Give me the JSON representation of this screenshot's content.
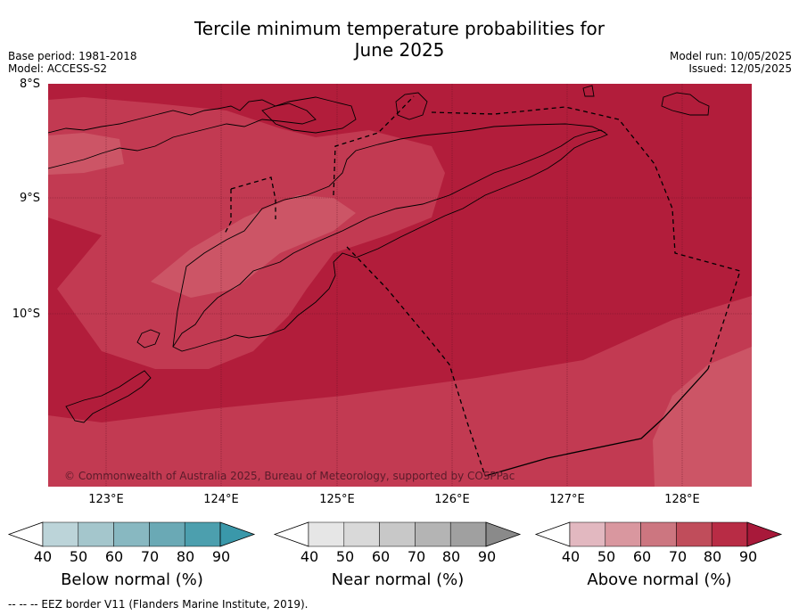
{
  "title_line1": "Tercile minimum temperature probabilities for",
  "title_line2": "June 2025",
  "meta_left": [
    "Base period: 1981-2018",
    "Model: ACCESS-S2"
  ],
  "meta_right": [
    "Model run: 10/05/2025",
    "Issued: 12/05/2025"
  ],
  "lat_labels": [
    "8°S",
    "9°S",
    "10°S"
  ],
  "lon_labels": [
    "123°E",
    "124°E",
    "125°E",
    "126°E",
    "127°E",
    "128°E"
  ],
  "copyright": "© Commonwealth of Australia 2025, Bureau of Meteorology, supported by COSPPac",
  "colorbars": [
    {
      "label": "Below normal (%)",
      "ticks": [
        "40",
        "50",
        "60",
        "70",
        "80",
        "90"
      ],
      "colors": [
        "#ffffff",
        "#bcd4d9",
        "#a4c6cc",
        "#88b8c1",
        "#6aa9b5",
        "#4c9fae",
        "#3a98aa"
      ]
    },
    {
      "label": "Near normal (%)",
      "ticks": [
        "40",
        "50",
        "60",
        "70",
        "80",
        "90"
      ],
      "colors": [
        "#ffffff",
        "#e6e6e6",
        "#d9d9d9",
        "#c8c8c8",
        "#b4b4b4",
        "#a0a0a0",
        "#8a8a8a"
      ]
    },
    {
      "label": "Above normal (%)",
      "ticks": [
        "40",
        "50",
        "60",
        "70",
        "80",
        "90"
      ],
      "colors": [
        "#ffffff",
        "#e2b8c0",
        "#d9979f",
        "#cc7680",
        "#c04d5b",
        "#b82c45",
        "#a8193a"
      ]
    }
  ],
  "map_colors": {
    "p90": "#b21d3b",
    "p80": "#c23a52",
    "p70": "#cc5566"
  },
  "footnote": "--  --  -- EEZ border V11 (Flanders Marine Institute, 2019)."
}
